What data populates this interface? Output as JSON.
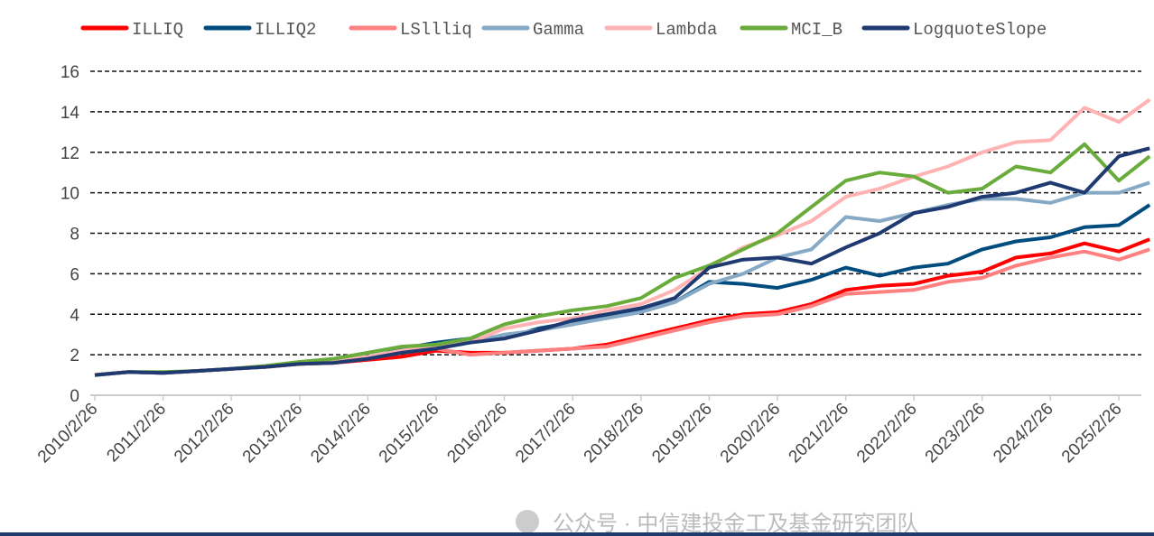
{
  "chart_data": {
    "type": "line",
    "title": "",
    "xlabel": "",
    "ylabel": "",
    "ylim": [
      0,
      16
    ],
    "yticks": [
      0,
      2,
      4,
      6,
      8,
      10,
      12,
      14,
      16
    ],
    "xticks": [
      "2010/2/26",
      "2011/2/26",
      "2012/2/26",
      "2013/2/26",
      "2014/2/26",
      "2015/2/26",
      "2016/2/26",
      "2017/2/26",
      "2018/2/26",
      "2019/2/26",
      "2020/2/26",
      "2021/2/26",
      "2022/2/26",
      "2023/2/26",
      "2024/2/26",
      "2025/2/26"
    ],
    "grid": "horizontal dashed",
    "legend_placement": "top",
    "x": [
      "2010-02-26",
      "2010-08-26",
      "2011-02-26",
      "2011-08-26",
      "2012-02-26",
      "2012-08-26",
      "2013-02-26",
      "2013-08-26",
      "2014-02-26",
      "2014-08-26",
      "2015-02-26",
      "2015-08-26",
      "2016-02-26",
      "2016-08-26",
      "2017-02-26",
      "2017-08-26",
      "2018-02-26",
      "2018-08-26",
      "2019-02-26",
      "2019-08-26",
      "2020-02-26",
      "2020-08-26",
      "2021-02-26",
      "2021-08-26",
      "2022-02-26",
      "2022-08-26",
      "2023-02-26",
      "2023-08-26",
      "2024-02-26",
      "2024-08-26",
      "2025-02-26",
      "2025-08-10"
    ],
    "series": [
      {
        "name": "ILLIQ",
        "color": "#ff0000",
        "values": [
          1.0,
          1.15,
          1.1,
          1.2,
          1.3,
          1.4,
          1.55,
          1.6,
          1.75,
          1.9,
          2.2,
          2.1,
          2.1,
          2.2,
          2.3,
          2.5,
          2.9,
          3.3,
          3.7,
          4.0,
          4.1,
          4.5,
          5.2,
          5.4,
          5.5,
          5.9,
          6.1,
          6.8,
          7.0,
          7.5,
          7.1,
          7.7
        ]
      },
      {
        "name": "ILLIQ2",
        "color": "#004c7f",
        "values": [
          1.0,
          1.15,
          1.1,
          1.2,
          1.3,
          1.4,
          1.6,
          1.7,
          1.8,
          2.3,
          2.6,
          2.8,
          2.8,
          3.3,
          3.6,
          3.9,
          4.2,
          4.6,
          5.6,
          5.5,
          5.3,
          5.7,
          6.3,
          5.9,
          6.3,
          6.5,
          7.2,
          7.6,
          7.8,
          8.3,
          8.4,
          9.4
        ]
      },
      {
        "name": "LSllliq",
        "color": "#ff8080",
        "values": [
          1.0,
          1.15,
          1.1,
          1.2,
          1.3,
          1.4,
          1.55,
          1.6,
          1.8,
          2.1,
          2.3,
          2.0,
          2.1,
          2.2,
          2.3,
          2.4,
          2.8,
          3.2,
          3.6,
          3.9,
          4.0,
          4.4,
          5.0,
          5.1,
          5.2,
          5.6,
          5.8,
          6.4,
          6.8,
          7.1,
          6.7,
          7.2
        ]
      },
      {
        "name": "Gamma",
        "color": "#86a9c6",
        "values": [
          1.0,
          1.15,
          1.1,
          1.2,
          1.3,
          1.4,
          1.6,
          1.7,
          1.9,
          2.2,
          2.5,
          2.6,
          3.0,
          3.2,
          3.5,
          3.8,
          4.1,
          4.6,
          5.5,
          6.0,
          6.8,
          7.2,
          8.8,
          8.6,
          9.0,
          9.4,
          9.7,
          9.7,
          9.5,
          10.0,
          10.0,
          10.5
        ]
      },
      {
        "name": "Lambda",
        "color": "#ffb3b3",
        "values": [
          1.0,
          1.15,
          1.1,
          1.2,
          1.3,
          1.4,
          1.6,
          1.7,
          1.9,
          2.2,
          2.4,
          2.6,
          3.3,
          3.6,
          3.8,
          4.2,
          4.5,
          5.2,
          6.3,
          7.3,
          7.9,
          8.6,
          9.8,
          10.2,
          10.8,
          11.3,
          12.0,
          12.5,
          12.6,
          14.2,
          13.5,
          14.6
        ]
      },
      {
        "name": "MCI_B",
        "color": "#6aac3c",
        "values": [
          1.0,
          1.15,
          1.15,
          1.2,
          1.3,
          1.45,
          1.65,
          1.8,
          2.1,
          2.4,
          2.5,
          2.8,
          3.5,
          3.9,
          4.2,
          4.4,
          4.8,
          5.8,
          6.4,
          7.2,
          8.0,
          9.3,
          10.6,
          11.0,
          10.8,
          10.0,
          10.2,
          11.3,
          11.0,
          12.4,
          10.6,
          11.8
        ]
      },
      {
        "name": "LogquoteSlope",
        "color": "#1f3a70",
        "values": [
          1.0,
          1.15,
          1.1,
          1.2,
          1.3,
          1.4,
          1.55,
          1.6,
          1.8,
          2.1,
          2.3,
          2.6,
          2.8,
          3.2,
          3.7,
          4.0,
          4.3,
          4.8,
          6.3,
          6.7,
          6.8,
          6.5,
          7.3,
          8.0,
          9.0,
          9.3,
          9.8,
          10.0,
          10.5,
          10.0,
          11.8,
          12.2
        ]
      }
    ]
  },
  "watermark": "公众号 · 中信建投金工及基金研究团队"
}
